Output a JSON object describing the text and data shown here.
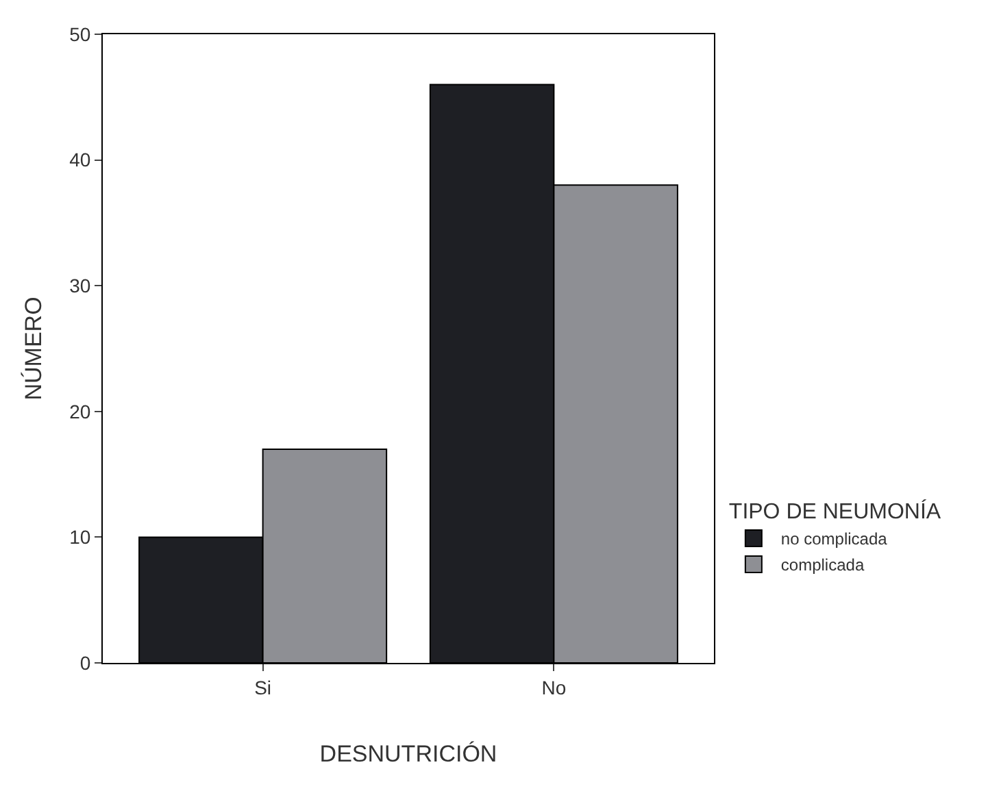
{
  "chart_data": {
    "type": "bar",
    "xlabel": "DESNUTRICIÓN",
    "ylabel": "NÚMERO",
    "legend_title": "TIPO DE NEUMONÍA",
    "categories": [
      "Si",
      "No"
    ],
    "series": [
      {
        "name": "no complicada",
        "color": "#1e1f24",
        "values": [
          10,
          46
        ]
      },
      {
        "name": "complicada",
        "color": "#8e8f94",
        "values": [
          17,
          38
        ]
      }
    ],
    "ylim": [
      0,
      50
    ],
    "yticks": [
      0,
      10,
      20,
      30,
      40,
      50
    ],
    "grid": false,
    "legend": "right"
  }
}
